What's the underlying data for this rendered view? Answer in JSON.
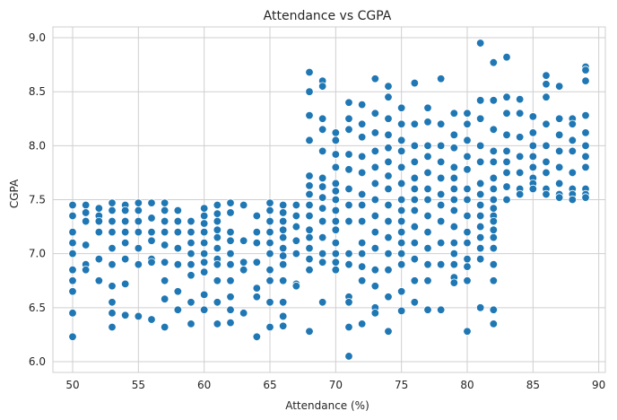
{
  "chart_data": {
    "type": "scatter",
    "title": "Attendance vs CGPA",
    "xlabel": "Attendance (%)",
    "ylabel": "CGPA",
    "xlim": [
      48.5,
      90.5
    ],
    "ylim": [
      5.9,
      9.1
    ],
    "xticks": [
      50,
      55,
      60,
      65,
      70,
      75,
      80,
      85,
      90
    ],
    "yticks": [
      6.0,
      6.5,
      7.0,
      7.5,
      8.0,
      8.5,
      9.0
    ],
    "grid": true,
    "color": "#1f77b4",
    "points": [
      [
        50,
        7.45
      ],
      [
        50,
        7.35
      ],
      [
        50,
        7.2
      ],
      [
        50,
        7.1
      ],
      [
        50,
        7.0
      ],
      [
        50,
        6.85
      ],
      [
        50,
        6.75
      ],
      [
        50,
        6.65
      ],
      [
        50,
        6.45
      ],
      [
        50,
        6.23
      ],
      [
        51,
        7.45
      ],
      [
        51,
        7.38
      ],
      [
        51,
        7.3
      ],
      [
        51,
        7.08
      ],
      [
        51,
        6.9
      ],
      [
        51,
        6.85
      ],
      [
        52,
        7.42
      ],
      [
        52,
        7.35
      ],
      [
        52,
        7.3
      ],
      [
        52,
        7.2
      ],
      [
        52,
        6.95
      ],
      [
        52,
        6.75
      ],
      [
        53,
        7.47
      ],
      [
        53,
        7.4
      ],
      [
        53,
        7.3
      ],
      [
        53,
        7.2
      ],
      [
        53,
        7.05
      ],
      [
        53,
        6.9
      ],
      [
        53,
        6.7
      ],
      [
        53,
        6.55
      ],
      [
        53,
        6.45
      ],
      [
        53,
        6.32
      ],
      [
        54,
        7.45
      ],
      [
        54,
        7.4
      ],
      [
        54,
        7.3
      ],
      [
        54,
        7.2
      ],
      [
        54,
        7.1
      ],
      [
        54,
        6.95
      ],
      [
        54,
        6.72
      ],
      [
        54,
        6.43
      ],
      [
        55,
        7.47
      ],
      [
        55,
        7.4
      ],
      [
        55,
        7.3
      ],
      [
        55,
        7.2
      ],
      [
        55,
        7.05
      ],
      [
        55,
        6.9
      ],
      [
        55,
        6.42
      ],
      [
        56,
        7.47
      ],
      [
        56,
        7.33
      ],
      [
        56,
        7.2
      ],
      [
        56,
        7.12
      ],
      [
        56,
        6.95
      ],
      [
        56,
        6.92
      ],
      [
        56,
        6.39
      ],
      [
        57,
        7.47
      ],
      [
        57,
        7.4
      ],
      [
        57,
        7.3
      ],
      [
        57,
        7.2
      ],
      [
        57,
        7.08
      ],
      [
        57,
        6.92
      ],
      [
        57,
        6.75
      ],
      [
        57,
        6.58
      ],
      [
        57,
        6.32
      ],
      [
        58,
        7.4
      ],
      [
        58,
        7.3
      ],
      [
        58,
        7.2
      ],
      [
        58,
        7.05
      ],
      [
        58,
        6.9
      ],
      [
        58,
        6.65
      ],
      [
        58,
        6.48
      ],
      [
        59,
        7.3
      ],
      [
        59,
        7.2
      ],
      [
        59,
        7.1
      ],
      [
        59,
        7.0
      ],
      [
        59,
        6.9
      ],
      [
        59,
        6.8
      ],
      [
        59,
        6.55
      ],
      [
        59,
        6.35
      ],
      [
        60,
        7.42
      ],
      [
        60,
        7.35
      ],
      [
        60,
        7.28
      ],
      [
        60,
        7.2
      ],
      [
        60,
        7.1
      ],
      [
        60,
        7.0
      ],
      [
        60,
        6.92
      ],
      [
        60,
        6.83
      ],
      [
        60,
        6.62
      ],
      [
        60,
        6.48
      ],
      [
        61,
        7.45
      ],
      [
        61,
        7.37
      ],
      [
        61,
        7.3
      ],
      [
        61,
        7.22
      ],
      [
        61,
        7.15
      ],
      [
        61,
        7.05
      ],
      [
        61,
        6.95
      ],
      [
        61,
        6.9
      ],
      [
        61,
        6.75
      ],
      [
        61,
        6.55
      ],
      [
        61,
        6.35
      ],
      [
        62,
        7.47
      ],
      [
        62,
        7.38
      ],
      [
        62,
        7.2
      ],
      [
        62,
        7.12
      ],
      [
        62,
        7.0
      ],
      [
        62,
        6.9
      ],
      [
        62,
        6.75
      ],
      [
        62,
        6.6
      ],
      [
        62,
        6.48
      ],
      [
        62,
        6.36
      ],
      [
        63,
        7.45
      ],
      [
        63,
        7.12
      ],
      [
        63,
        6.92
      ],
      [
        63,
        6.85
      ],
      [
        63,
        6.45
      ],
      [
        64,
        7.35
      ],
      [
        64,
        7.2
      ],
      [
        64,
        7.1
      ],
      [
        64,
        6.92
      ],
      [
        64,
        6.68
      ],
      [
        64,
        6.6
      ],
      [
        64,
        6.23
      ],
      [
        65,
        7.47
      ],
      [
        65,
        7.4
      ],
      [
        65,
        7.3
      ],
      [
        65,
        7.2
      ],
      [
        65,
        7.1
      ],
      [
        65,
        7.0
      ],
      [
        65,
        6.85
      ],
      [
        65,
        6.75
      ],
      [
        65,
        6.55
      ],
      [
        65,
        6.32
      ],
      [
        66,
        7.45
      ],
      [
        66,
        7.38
      ],
      [
        66,
        7.3
      ],
      [
        66,
        7.22
      ],
      [
        66,
        7.15
      ],
      [
        66,
        7.05
      ],
      [
        66,
        6.98
      ],
      [
        66,
        6.9
      ],
      [
        66,
        6.75
      ],
      [
        66,
        6.55
      ],
      [
        66,
        6.42
      ],
      [
        66,
        6.33
      ],
      [
        67,
        7.45
      ],
      [
        67,
        7.35
      ],
      [
        67,
        7.25
      ],
      [
        67,
        7.12
      ],
      [
        67,
        7.0
      ],
      [
        67,
        6.72
      ],
      [
        67,
        6.7
      ],
      [
        68,
        8.68
      ],
      [
        68,
        8.5
      ],
      [
        68,
        8.28
      ],
      [
        68,
        8.05
      ],
      [
        68,
        7.72
      ],
      [
        68,
        7.63
      ],
      [
        68,
        7.55
      ],
      [
        68,
        7.45
      ],
      [
        68,
        7.35
      ],
      [
        68,
        7.22
      ],
      [
        68,
        7.15
      ],
      [
        68,
        7.05
      ],
      [
        68,
        6.95
      ],
      [
        68,
        6.85
      ],
      [
        68,
        6.28
      ],
      [
        69,
        8.6
      ],
      [
        69,
        8.55
      ],
      [
        69,
        8.25
      ],
      [
        69,
        8.15
      ],
      [
        69,
        7.95
      ],
      [
        69,
        7.7
      ],
      [
        69,
        7.62
      ],
      [
        69,
        7.52
      ],
      [
        69,
        7.42
      ],
      [
        69,
        7.3
      ],
      [
        69,
        7.15
      ],
      [
        69,
        7.0
      ],
      [
        69,
        6.92
      ],
      [
        69,
        6.55
      ],
      [
        70,
        8.12
      ],
      [
        70,
        8.05
      ],
      [
        70,
        7.92
      ],
      [
        70,
        7.8
      ],
      [
        70,
        7.65
      ],
      [
        70,
        7.58
      ],
      [
        70,
        7.5
      ],
      [
        70,
        7.4
      ],
      [
        70,
        7.3
      ],
      [
        70,
        7.22
      ],
      [
        70,
        7.1
      ],
      [
        70,
        7.0
      ],
      [
        70,
        6.92
      ],
      [
        70,
        6.85
      ],
      [
        71,
        8.4
      ],
      [
        71,
        8.25
      ],
      [
        71,
        8.15
      ],
      [
        71,
        7.92
      ],
      [
        71,
        7.78
      ],
      [
        71,
        7.6
      ],
      [
        71,
        7.45
      ],
      [
        71,
        7.3
      ],
      [
        71,
        7.0
      ],
      [
        71,
        6.9
      ],
      [
        71,
        6.6
      ],
      [
        71,
        6.55
      ],
      [
        71,
        6.32
      ],
      [
        71,
        6.05
      ],
      [
        72,
        8.38
      ],
      [
        72,
        8.2
      ],
      [
        72,
        8.08
      ],
      [
        72,
        7.9
      ],
      [
        72,
        7.75
      ],
      [
        72,
        7.55
      ],
      [
        72,
        7.45
      ],
      [
        72,
        7.3
      ],
      [
        72,
        7.1
      ],
      [
        72,
        7.0
      ],
      [
        72,
        6.88
      ],
      [
        72,
        6.75
      ],
      [
        72,
        6.35
      ],
      [
        73,
        8.62
      ],
      [
        73,
        8.3
      ],
      [
        73,
        8.12
      ],
      [
        73,
        7.95
      ],
      [
        73,
        7.8
      ],
      [
        73,
        7.65
      ],
      [
        73,
        7.5
      ],
      [
        73,
        7.35
      ],
      [
        73,
        7.2
      ],
      [
        73,
        7.05
      ],
      [
        73,
        6.85
      ],
      [
        73,
        6.7
      ],
      [
        73,
        6.5
      ],
      [
        73,
        6.45
      ],
      [
        74,
        8.55
      ],
      [
        74,
        8.45
      ],
      [
        74,
        8.25
      ],
      [
        74,
        8.1
      ],
      [
        74,
        7.98
      ],
      [
        74,
        7.85
      ],
      [
        74,
        7.72
      ],
      [
        74,
        7.6
      ],
      [
        74,
        7.45
      ],
      [
        74,
        7.3
      ],
      [
        74,
        7.15
      ],
      [
        74,
        7.0
      ],
      [
        74,
        6.85
      ],
      [
        74,
        6.6
      ],
      [
        74,
        6.28
      ],
      [
        75,
        8.35
      ],
      [
        75,
        8.2
      ],
      [
        75,
        8.05
      ],
      [
        75,
        7.95
      ],
      [
        75,
        7.8
      ],
      [
        75,
        7.65
      ],
      [
        75,
        7.5
      ],
      [
        75,
        7.4
      ],
      [
        75,
        7.3
      ],
      [
        75,
        7.2
      ],
      [
        75,
        7.1
      ],
      [
        75,
        7.0
      ],
      [
        75,
        6.9
      ],
      [
        75,
        6.65
      ],
      [
        75,
        6.47
      ],
      [
        76,
        8.58
      ],
      [
        76,
        8.2
      ],
      [
        76,
        8.0
      ],
      [
        76,
        7.85
      ],
      [
        76,
        7.7
      ],
      [
        76,
        7.6
      ],
      [
        76,
        7.5
      ],
      [
        76,
        7.4
      ],
      [
        76,
        7.25
      ],
      [
        76,
        7.1
      ],
      [
        76,
        6.95
      ],
      [
        76,
        6.75
      ],
      [
        76,
        6.55
      ],
      [
        77,
        8.35
      ],
      [
        77,
        8.22
      ],
      [
        77,
        8.0
      ],
      [
        77,
        7.9
      ],
      [
        77,
        7.75
      ],
      [
        77,
        7.6
      ],
      [
        77,
        7.5
      ],
      [
        77,
        7.35
      ],
      [
        77,
        7.2
      ],
      [
        77,
        7.05
      ],
      [
        77,
        6.9
      ],
      [
        77,
        6.75
      ],
      [
        77,
        6.48
      ],
      [
        78,
        8.62
      ],
      [
        78,
        8.2
      ],
      [
        78,
        8.0
      ],
      [
        78,
        7.85
      ],
      [
        78,
        7.7
      ],
      [
        78,
        7.55
      ],
      [
        78,
        7.45
      ],
      [
        78,
        7.3
      ],
      [
        78,
        7.1
      ],
      [
        78,
        6.9
      ],
      [
        78,
        6.48
      ],
      [
        79,
        8.3
      ],
      [
        79,
        8.1
      ],
      [
        79,
        7.98
      ],
      [
        79,
        7.8
      ],
      [
        79,
        7.7
      ],
      [
        79,
        7.6
      ],
      [
        79,
        7.5
      ],
      [
        79,
        7.4
      ],
      [
        79,
        7.25
      ],
      [
        79,
        7.1
      ],
      [
        79,
        7.0
      ],
      [
        79,
        6.9
      ],
      [
        79,
        6.78
      ],
      [
        79,
        6.73
      ],
      [
        80,
        8.3
      ],
      [
        80,
        8.2
      ],
      [
        80,
        8.05
      ],
      [
        80,
        7.9
      ],
      [
        80,
        7.78
      ],
      [
        80,
        7.6
      ],
      [
        80,
        7.5
      ],
      [
        80,
        7.35
      ],
      [
        80,
        7.2
      ],
      [
        80,
        7.1
      ],
      [
        80,
        6.95
      ],
      [
        80,
        6.88
      ],
      [
        80,
        6.75
      ],
      [
        80,
        6.28
      ],
      [
        81,
        8.95
      ],
      [
        81,
        8.42
      ],
      [
        81,
        8.25
      ],
      [
        81,
        8.0
      ],
      [
        81,
        7.85
      ],
      [
        81,
        7.65
      ],
      [
        81,
        7.55
      ],
      [
        81,
        7.45
      ],
      [
        81,
        7.35
      ],
      [
        81,
        7.25
      ],
      [
        81,
        7.15
      ],
      [
        81,
        7.05
      ],
      [
        81,
        6.95
      ],
      [
        81,
        6.5
      ],
      [
        82,
        8.77
      ],
      [
        82,
        8.42
      ],
      [
        82,
        8.15
      ],
      [
        82,
        7.95
      ],
      [
        82,
        7.85
      ],
      [
        82,
        7.7
      ],
      [
        82,
        7.6
      ],
      [
        82,
        7.5
      ],
      [
        82,
        7.42
      ],
      [
        82,
        7.35
      ],
      [
        82,
        7.3
      ],
      [
        82,
        7.22
      ],
      [
        82,
        7.15
      ],
      [
        82,
        7.05
      ],
      [
        82,
        6.9
      ],
      [
        82,
        6.75
      ],
      [
        82,
        6.48
      ],
      [
        82,
        6.35
      ],
      [
        83,
        8.82
      ],
      [
        83,
        8.45
      ],
      [
        83,
        8.3
      ],
      [
        83,
        8.1
      ],
      [
        83,
        7.95
      ],
      [
        83,
        7.85
      ],
      [
        83,
        7.75
      ],
      [
        83,
        7.62
      ],
      [
        83,
        7.5
      ],
      [
        84,
        8.43
      ],
      [
        84,
        8.3
      ],
      [
        84,
        8.08
      ],
      [
        84,
        7.9
      ],
      [
        84,
        7.75
      ],
      [
        84,
        7.6
      ],
      [
        84,
        7.55
      ],
      [
        85,
        8.27
      ],
      [
        85,
        8.12
      ],
      [
        85,
        8.0
      ],
      [
        85,
        7.9
      ],
      [
        85,
        7.8
      ],
      [
        85,
        7.7
      ],
      [
        85,
        7.65
      ],
      [
        85,
        7.6
      ],
      [
        86,
        8.65
      ],
      [
        86,
        8.57
      ],
      [
        86,
        8.45
      ],
      [
        86,
        8.2
      ],
      [
        86,
        8.0
      ],
      [
        86,
        7.85
      ],
      [
        86,
        7.75
      ],
      [
        86,
        7.6
      ],
      [
        86,
        7.55
      ],
      [
        87,
        8.55
      ],
      [
        87,
        8.25
      ],
      [
        87,
        8.1
      ],
      [
        87,
        7.95
      ],
      [
        87,
        7.8
      ],
      [
        87,
        7.65
      ],
      [
        87,
        7.55
      ],
      [
        87,
        7.52
      ],
      [
        88,
        8.25
      ],
      [
        88,
        8.2
      ],
      [
        88,
        8.05
      ],
      [
        88,
        7.95
      ],
      [
        88,
        7.75
      ],
      [
        88,
        7.6
      ],
      [
        88,
        7.55
      ],
      [
        88,
        7.5
      ],
      [
        89,
        8.73
      ],
      [
        89,
        8.7
      ],
      [
        89,
        8.6
      ],
      [
        89,
        8.28
      ],
      [
        89,
        8.12
      ],
      [
        89,
        8.0
      ],
      [
        89,
        7.9
      ],
      [
        89,
        7.8
      ],
      [
        89,
        7.6
      ],
      [
        89,
        7.55
      ],
      [
        89,
        7.52
      ]
    ]
  }
}
